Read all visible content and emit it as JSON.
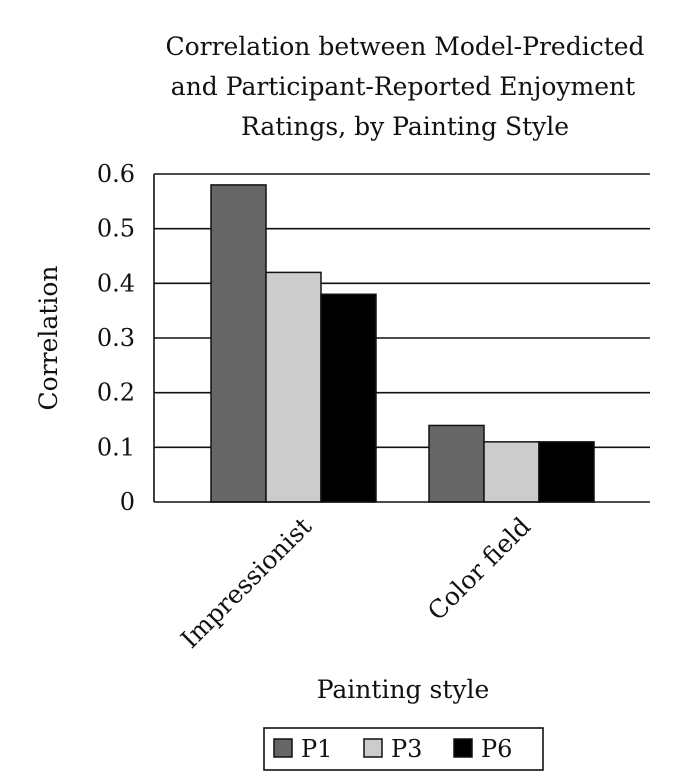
{
  "chart_data": {
    "type": "bar",
    "title_lines": [
      "Correlation between Model-Predicted",
      "and Participant-Reported Enjoyment",
      "Ratings, by Painting Style"
    ],
    "xlabel": "Painting style",
    "ylabel": "Correlation",
    "ylim": [
      0,
      0.6
    ],
    "yticks": [
      "0",
      "0.1",
      "0.2",
      "0.3",
      "0.4",
      "0.5",
      "0.6"
    ],
    "grid": true,
    "legend_position": "bottom",
    "categories": [
      "Impressionist",
      "Color field"
    ],
    "series": [
      {
        "name": "P1",
        "color": "#666666",
        "values": [
          0.58,
          0.14
        ]
      },
      {
        "name": "P3",
        "color": "#cccccc",
        "values": [
          0.42,
          0.11
        ]
      },
      {
        "name": "P6",
        "color": "#000000",
        "values": [
          0.38,
          0.11
        ]
      }
    ]
  }
}
